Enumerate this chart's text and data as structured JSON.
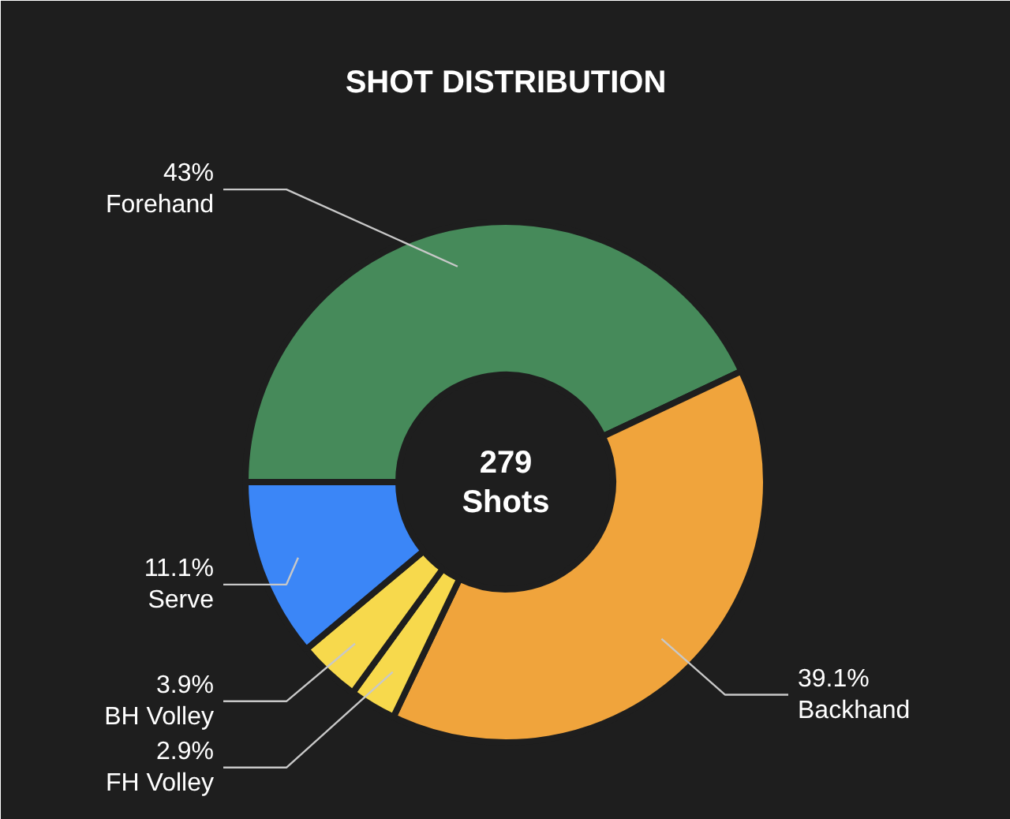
{
  "chart_data": {
    "type": "donut",
    "title": "SHOT DISTRIBUTION",
    "categories": [
      "Forehand",
      "Backhand",
      "FH Volley",
      "BH Volley",
      "Serve"
    ],
    "values": [
      43,
      39.1,
      2.9,
      3.9,
      11.1
    ],
    "value_labels": [
      "43%",
      "39.1%",
      "2.9%",
      "3.9%",
      "11.1%"
    ],
    "colors": [
      "#468a5a",
      "#f0a43c",
      "#f7d94c",
      "#f7d94c",
      "#3b86f7"
    ],
    "annotations": [
      "279",
      "Shots"
    ]
  }
}
